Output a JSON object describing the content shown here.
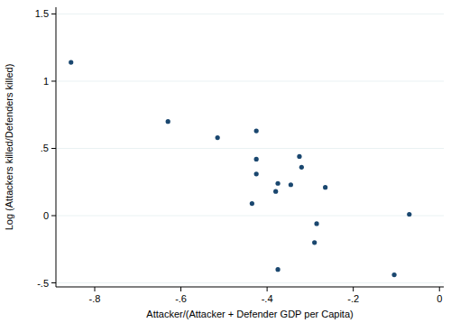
{
  "chart_data": {
    "type": "scatter",
    "x_label": "Attacker/(Attacker + Defender GDP per Capita)",
    "y_label": "Log (Attackers killed/Defenders killed)",
    "x": [
      -0.855,
      -0.63,
      -0.515,
      -0.425,
      -0.425,
      -0.425,
      -0.435,
      -0.375,
      -0.38,
      -0.375,
      -0.345,
      -0.325,
      -0.32,
      -0.265,
      -0.285,
      -0.29,
      -0.105,
      -0.07
    ],
    "values": [
      1.14,
      0.7,
      0.58,
      0.63,
      0.42,
      0.31,
      0.09,
      0.24,
      0.18,
      -0.4,
      0.23,
      0.44,
      0.36,
      0.21,
      -0.06,
      -0.2,
      -0.44,
      0.01
    ],
    "color": "#1a476f",
    "marker": "circle",
    "xlim": [
      -0.89,
      0.01
    ],
    "ylim": [
      -0.53,
      1.55
    ],
    "xticks": [
      {
        "value": -0.8,
        "label": "-.8"
      },
      {
        "value": -0.6,
        "label": "-.6"
      },
      {
        "value": -0.4,
        "label": "-.4"
      },
      {
        "value": -0.2,
        "label": "-.2"
      },
      0
    ],
    "yticks": [
      {
        "value": -0.5,
        "label": "-.5"
      },
      0,
      {
        "value": 0.5,
        "label": ".5"
      },
      1,
      {
        "value": 1.5,
        "label": "1.5"
      }
    ],
    "grid": true
  }
}
